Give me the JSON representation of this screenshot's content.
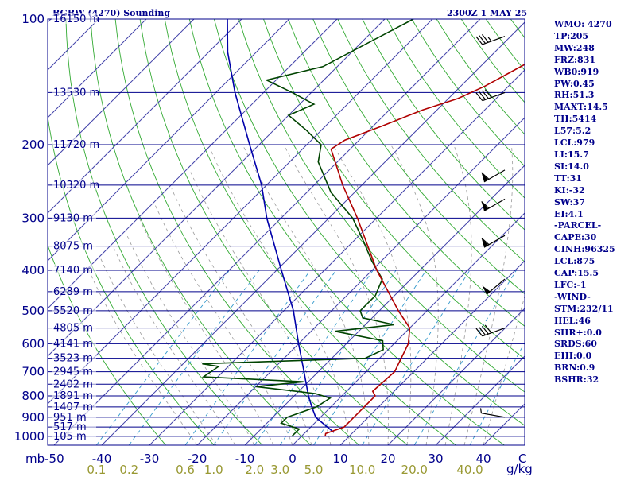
{
  "title": "BGBW (4270) Sounding",
  "datetime": "2300Z  1 MAY 25",
  "indices": [
    "WMO: 4270",
    "TP:205",
    "MW:248",
    "FRZ:831",
    "WB0:919",
    "PW:0.45",
    "RH:51.3",
    "MAXT:14.5",
    "TH:5414",
    "L57:5.2",
    "LCL:979",
    "LI:15.7",
    "SI:14.0",
    "TT:31",
    "KI:-32",
    "SW:37",
    "EI:4.1",
    "-PARCEL-",
    "CAPE:30",
    "CINH:96325",
    "LCL:875",
    "CAP:15.5",
    "LFC:-1",
    "-WIND-",
    "STM:232/11",
    "HEL:46",
    "SHR+:0.0",
    "SRDS:60",
    "EHI:0.0",
    "BRN:0.9",
    "BSHR:32"
  ],
  "colors": {
    "axis": "#00008b",
    "isobar": "#00008b",
    "isotherm": "#4444aa",
    "dry_adiabat": "#33aa33",
    "moist_adiabat": "#9a9a9a",
    "mixing_ratio": "#3399cc",
    "temperature": "#b00000",
    "dewpoint": "#004400",
    "parcel": "#0000aa",
    "mixing_ratio_labels": "#999933"
  },
  "chart_data": {
    "type": "skew-T log-P sounding",
    "pressure_unit": "mb",
    "temperature_unit": "C",
    "mixing_ratio_unit": "g/kg",
    "pressure_ticks": [
      100,
      200,
      300,
      400,
      500,
      600,
      700,
      800,
      900,
      1000
    ],
    "temperature_ticks": [
      -50,
      -40,
      -30,
      -20,
      -10,
      0,
      10,
      20,
      30,
      40
    ],
    "temperature_tick_labels": [
      "mb-50",
      "-40",
      "-30",
      "-20",
      "-10",
      "0",
      "10",
      "20",
      "30",
      "40"
    ],
    "corner_label": "C",
    "mixing_ratio_ticks": [
      "0.1",
      "0.2",
      "0.6",
      "1.0",
      "2.0",
      "3.0",
      "5.0",
      "10.0",
      "20.0",
      "40.0"
    ],
    "height_labels": [
      {
        "pressure": 100,
        "label": "16150 m"
      },
      {
        "pressure": 150,
        "label": "13530 m"
      },
      {
        "pressure": 200,
        "label": "11720 m"
      },
      {
        "pressure": 250,
        "label": "10320 m"
      },
      {
        "pressure": 300,
        "label": "9130 m"
      },
      {
        "pressure": 350,
        "label": "8075 m"
      },
      {
        "pressure": 400,
        "label": "7140 m"
      },
      {
        "pressure": 450,
        "label": "6289 m"
      },
      {
        "pressure": 500,
        "label": "5520 m"
      },
      {
        "pressure": 550,
        "label": "4805 m"
      },
      {
        "pressure": 600,
        "label": "4141 m"
      },
      {
        "pressure": 650,
        "label": "3523 m"
      },
      {
        "pressure": 700,
        "label": "2945 m"
      },
      {
        "pressure": 750,
        "label": "2402 m"
      },
      {
        "pressure": 800,
        "label": "1891 m"
      },
      {
        "pressure": 850,
        "label": "1407 m"
      },
      {
        "pressure": 900,
        "label": "951 m"
      },
      {
        "pressure": 950,
        "label": "517 m"
      },
      {
        "pressure": 1000,
        "label": "105 m"
      }
    ],
    "temperature_profile": [
      {
        "p": 1000,
        "t": 5
      },
      {
        "p": 985,
        "t": 4.5
      },
      {
        "p": 950,
        "t": 7
      },
      {
        "p": 900,
        "t": 7
      },
      {
        "p": 850,
        "t": 7
      },
      {
        "p": 800,
        "t": 7
      },
      {
        "p": 780,
        "t": 5.5
      },
      {
        "p": 700,
        "t": 6
      },
      {
        "p": 600,
        "t": 3
      },
      {
        "p": 550,
        "t": 0
      },
      {
        "p": 500,
        "t": -6
      },
      {
        "p": 400,
        "t": -19
      },
      {
        "p": 300,
        "t": -34
      },
      {
        "p": 250,
        "t": -44
      },
      {
        "p": 205,
        "t": -54
      },
      {
        "p": 195,
        "t": -53
      },
      {
        "p": 180,
        "t": -48
      },
      {
        "p": 165,
        "t": -43
      },
      {
        "p": 155,
        "t": -38
      },
      {
        "p": 145,
        "t": -35
      },
      {
        "p": 120,
        "t": -29
      },
      {
        "p": 100,
        "t": -24
      }
    ],
    "dewpoint_profile": [
      {
        "p": 1000,
        "t": -2
      },
      {
        "p": 990,
        "t": -2
      },
      {
        "p": 960,
        "t": -2
      },
      {
        "p": 930,
        "t": -7
      },
      {
        "p": 900,
        "t": -7
      },
      {
        "p": 850,
        "t": -3
      },
      {
        "p": 810,
        "t": -2
      },
      {
        "p": 790,
        "t": -6
      },
      {
        "p": 760,
        "t": -20
      },
      {
        "p": 740,
        "t": -11
      },
      {
        "p": 720,
        "t": -33
      },
      {
        "p": 680,
        "t": -32
      },
      {
        "p": 670,
        "t": -36
      },
      {
        "p": 650,
        "t": -3
      },
      {
        "p": 620,
        "t": -1
      },
      {
        "p": 590,
        "t": -3
      },
      {
        "p": 560,
        "t": -15
      },
      {
        "p": 540,
        "t": -4
      },
      {
        "p": 520,
        "t": -12
      },
      {
        "p": 500,
        "t": -14
      },
      {
        "p": 460,
        "t": -14
      },
      {
        "p": 420,
        "t": -16
      },
      {
        "p": 380,
        "t": -22
      },
      {
        "p": 340,
        "t": -28
      },
      {
        "p": 300,
        "t": -35
      },
      {
        "p": 260,
        "t": -45
      },
      {
        "p": 220,
        "t": -54
      },
      {
        "p": 200,
        "t": -57
      },
      {
        "p": 185,
        "t": -63
      },
      {
        "p": 170,
        "t": -70
      },
      {
        "p": 160,
        "t": -67
      },
      {
        "p": 150,
        "t": -74
      },
      {
        "p": 140,
        "t": -82
      },
      {
        "p": 130,
        "t": -73
      },
      {
        "p": 100,
        "t": -64
      }
    ],
    "parcel_profile": [
      {
        "p": 979,
        "t": 6
      },
      {
        "p": 900,
        "t": -1
      },
      {
        "p": 850,
        "t": -4
      },
      {
        "p": 800,
        "t": -7
      },
      {
        "p": 700,
        "t": -13
      },
      {
        "p": 600,
        "t": -20
      },
      {
        "p": 500,
        "t": -28
      },
      {
        "p": 400,
        "t": -39
      },
      {
        "p": 300,
        "t": -53
      },
      {
        "p": 250,
        "t": -61
      },
      {
        "p": 200,
        "t": -72
      },
      {
        "p": 150,
        "t": -86
      },
      {
        "p": 120,
        "t": -96
      },
      {
        "p": 100,
        "t": -103
      }
    ],
    "wind_barbs": [
      {
        "p": 900,
        "dir": 280,
        "kt": 5
      },
      {
        "p": 550,
        "dir": 250,
        "kt": 40
      },
      {
        "p": 420,
        "dir": 230,
        "kt": 50
      },
      {
        "p": 330,
        "dir": 240,
        "kt": 60
      },
      {
        "p": 270,
        "dir": 240,
        "kt": 60
      },
      {
        "p": 230,
        "dir": 240,
        "kt": 60
      },
      {
        "p": 150,
        "dir": 250,
        "kt": 40
      },
      {
        "p": 110,
        "dir": 250,
        "kt": 35
      }
    ]
  }
}
